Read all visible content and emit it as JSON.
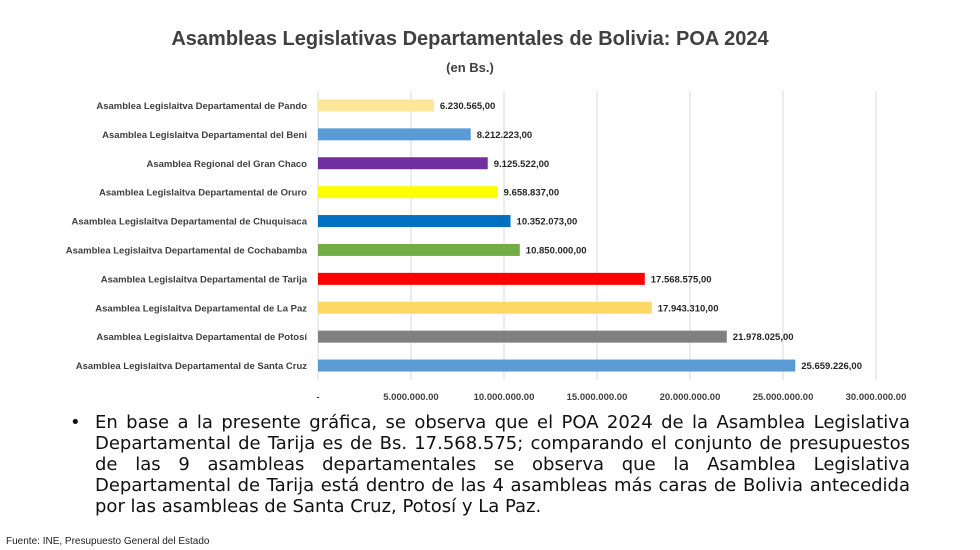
{
  "chart_data": {
    "type": "bar",
    "orientation": "horizontal",
    "title": "Asambleas Legislativas Departamentales de Bolivia: POA 2024",
    "subtitle": "(en Bs.)",
    "categories": [
      "Asamblea Legislaitva Departamental de Pando",
      "Asamblea Legislaitva Departamental del Beni",
      "Asamblea Regional del Gran Chaco",
      "Asamblea Legislaitva Departamental de Oruro",
      "Asamblea Legislaitva Departamental de Chuquisaca",
      "Asamblea Legislaitva Departamental de Cochabamba",
      "Asamblea Legislaitva Departamental de Tarija",
      "Asamblea Legislaitva Departamental de La Paz",
      "Asamblea Legislaitva Departamental de Potosí",
      "Asamblea Legislaitva Departamental de Santa Cruz"
    ],
    "values": [
      6230565,
      8212223,
      9125522,
      9658837,
      10352073,
      10850000,
      17568575,
      17943310,
      21978025,
      25659226
    ],
    "data_labels": [
      "6.230.565,00",
      "8.212.223,00",
      "9.125.522,00",
      "9.658.837,00",
      "10.352.073,00",
      "10.850.000,00",
      "17.568.575,00",
      "17.943.310,00",
      "21.978.025,00",
      "25.659.226,00"
    ],
    "colors": [
      "#FFE699",
      "#5B9BD5",
      "#7030A0",
      "#FFFF00",
      "#0070C0",
      "#70AD47",
      "#FF0000",
      "#FFD966",
      "#808080",
      "#5B9BD5"
    ],
    "xlim": [
      0,
      30000000
    ],
    "xticks": [
      0,
      5000000,
      10000000,
      15000000,
      20000000,
      25000000,
      30000000
    ],
    "xtick_labels": [
      "-",
      "5.000.000,00",
      "10.000.000,00",
      "15.000.000,00",
      "20.000.000,00",
      "25.000.000,00",
      "30.000.000,00"
    ],
    "grid": true,
    "legend": "none"
  },
  "bullet_text": "En base a la presente gráfica, se observa que el POA 2024 de la Asamblea Legislativa Departamental de Tarija es de Bs. 17.568.575; comparando el conjunto de presupuestos de las 9 asambleas departamentales se observa que la Asamblea Legislativa Departamental de Tarija está dentro de las 4 asambleas más caras de Bolivia antecedida por las asambleas de Santa Cruz, Potosí y La Paz.",
  "bullet_symbol": "•",
  "source_note": "Fuente:  INE, Presupuesto General del Estado"
}
